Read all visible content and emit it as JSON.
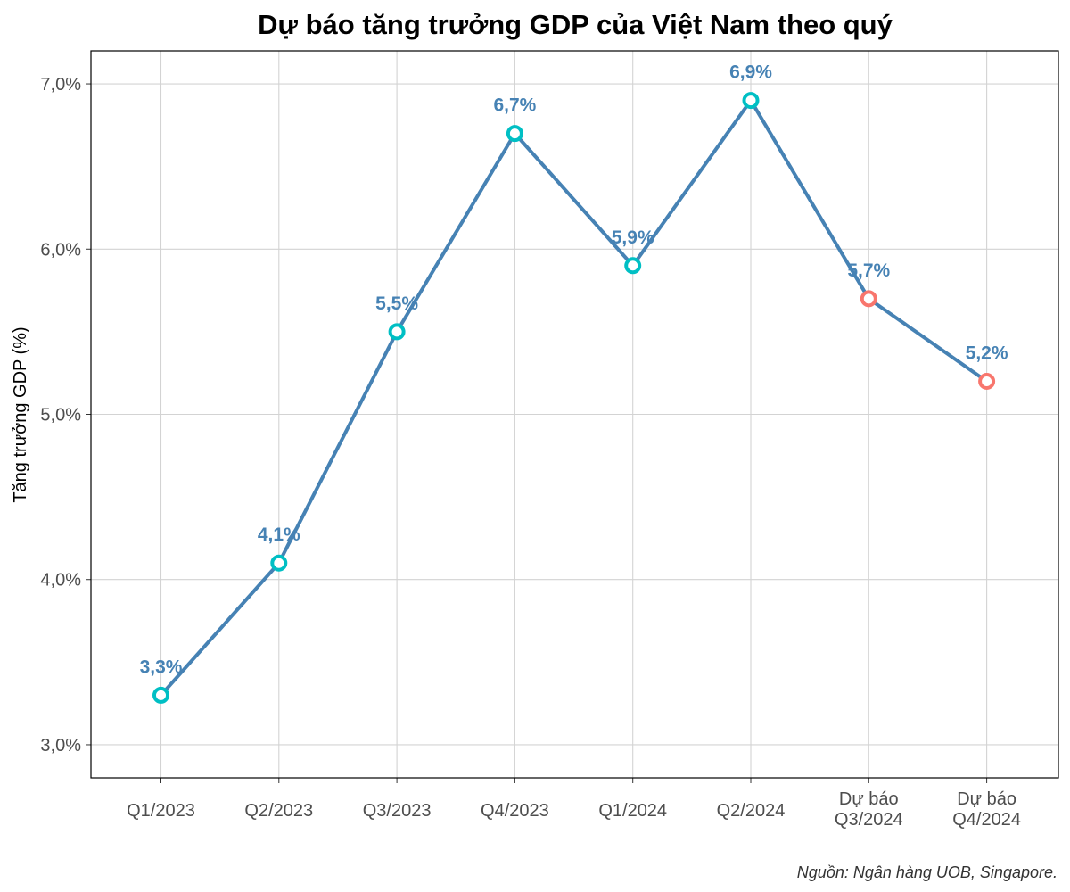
{
  "chart_data": {
    "type": "line",
    "title": "Dự báo tăng trưởng GDP của Việt Nam theo quý",
    "xlabel": "",
    "ylabel": "Tăng trưởng GDP (%)",
    "ylim": [
      2.8,
      7.2
    ],
    "yticks": [
      3.0,
      4.0,
      5.0,
      6.0,
      7.0
    ],
    "ytick_labels": [
      "3,0%",
      "4,0%",
      "5,0%",
      "6,0%",
      "7,0%"
    ],
    "categories": [
      [
        "Q1/2023"
      ],
      [
        "Q2/2023"
      ],
      [
        "Q3/2023"
      ],
      [
        "Q4/2023"
      ],
      [
        "Q1/2024"
      ],
      [
        "Q2/2024"
      ],
      [
        "Dự báo",
        "Q3/2024"
      ],
      [
        "Dự báo",
        "Q4/2024"
      ]
    ],
    "values": [
      3.3,
      4.1,
      5.5,
      6.7,
      5.9,
      6.9,
      5.7,
      5.2
    ],
    "value_labels": [
      "3,3%",
      "4,1%",
      "5,5%",
      "6,7%",
      "5,9%",
      "6,9%",
      "5,7%",
      "5,2%"
    ],
    "point_type": [
      "actual",
      "actual",
      "actual",
      "actual",
      "actual",
      "actual",
      "forecast",
      "forecast"
    ],
    "grid": true,
    "legend": "none",
    "caption": "Nguồn: Ngân hàng UOB, Singapore.",
    "colors": {
      "line": "#4682b4",
      "label": "#4682b4",
      "actual_marker": "#00bfc4",
      "forecast_marker": "#f8766d",
      "grid": "#d3d3d3",
      "frame": "#000000"
    }
  }
}
